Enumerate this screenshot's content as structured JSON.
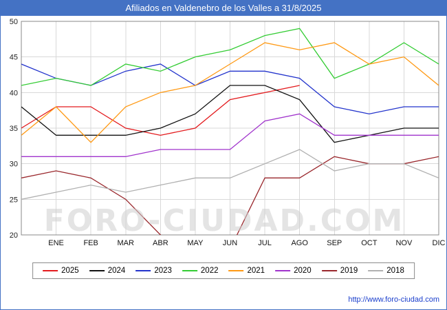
{
  "header": {
    "title": "Afiliados en Valdenebro de los Valles a 31/8/2025"
  },
  "watermark": {
    "text": "FORO-CIUDAD.COM"
  },
  "footer": {
    "url": "http://www.foro-ciudad.com"
  },
  "colors": {
    "titlebar": "#4472c4",
    "grid": "#d8d8d8",
    "plot_border": "#888888"
  },
  "chart_data": {
    "type": "line",
    "title": "Afiliados en Valdenebro de los Valles a 31/8/2025",
    "xlabel": "",
    "ylabel": "",
    "ylim": [
      20,
      50
    ],
    "yticks": [
      20,
      25,
      30,
      35,
      40,
      45,
      50
    ],
    "grid": true,
    "legend_position": "bottom",
    "categories": [
      "",
      "ENE",
      "FEB",
      "MAR",
      "ABR",
      "MAY",
      "JUN",
      "JUL",
      "AGO",
      "SEP",
      "OCT",
      "NOV",
      "DIC"
    ],
    "note": "first point is unlabeled at the left axis edge (previous December); 2025 series ends at AGO",
    "series": [
      {
        "name": "2025",
        "color": "#e3191c",
        "values": [
          35,
          38,
          38,
          35,
          34,
          35,
          39,
          40,
          41
        ]
      },
      {
        "name": "2024",
        "color": "#111111",
        "values": [
          38,
          34,
          34,
          34,
          35,
          37,
          41,
          41,
          39,
          33,
          34,
          35,
          35
        ]
      },
      {
        "name": "2023",
        "color": "#2233cc",
        "values": [
          44,
          42,
          41,
          43,
          44,
          41,
          43,
          43,
          42,
          38,
          37,
          38,
          38
        ]
      },
      {
        "name": "2022",
        "color": "#33cc33",
        "values": [
          41,
          42,
          41,
          44,
          43,
          45,
          46,
          48,
          49,
          42,
          44,
          47,
          44
        ]
      },
      {
        "name": "2021",
        "color": "#ff9913",
        "values": [
          34,
          38,
          33,
          38,
          40,
          41,
          44,
          47,
          46,
          47,
          44,
          45,
          41
        ]
      },
      {
        "name": "2020",
        "color": "#a033cc",
        "values": [
          31,
          31,
          31,
          31,
          32,
          32,
          32,
          36,
          37,
          34,
          34,
          34,
          34
        ]
      },
      {
        "name": "2019",
        "color": "#99262b",
        "values": [
          28,
          29,
          28,
          25,
          20,
          16,
          18,
          28,
          28,
          31,
          30,
          30,
          31
        ]
      },
      {
        "name": "2018",
        "color": "#b0b0b0",
        "values": [
          25,
          26,
          27,
          26,
          27,
          28,
          28,
          30,
          32,
          29,
          30,
          30,
          28
        ]
      }
    ]
  }
}
